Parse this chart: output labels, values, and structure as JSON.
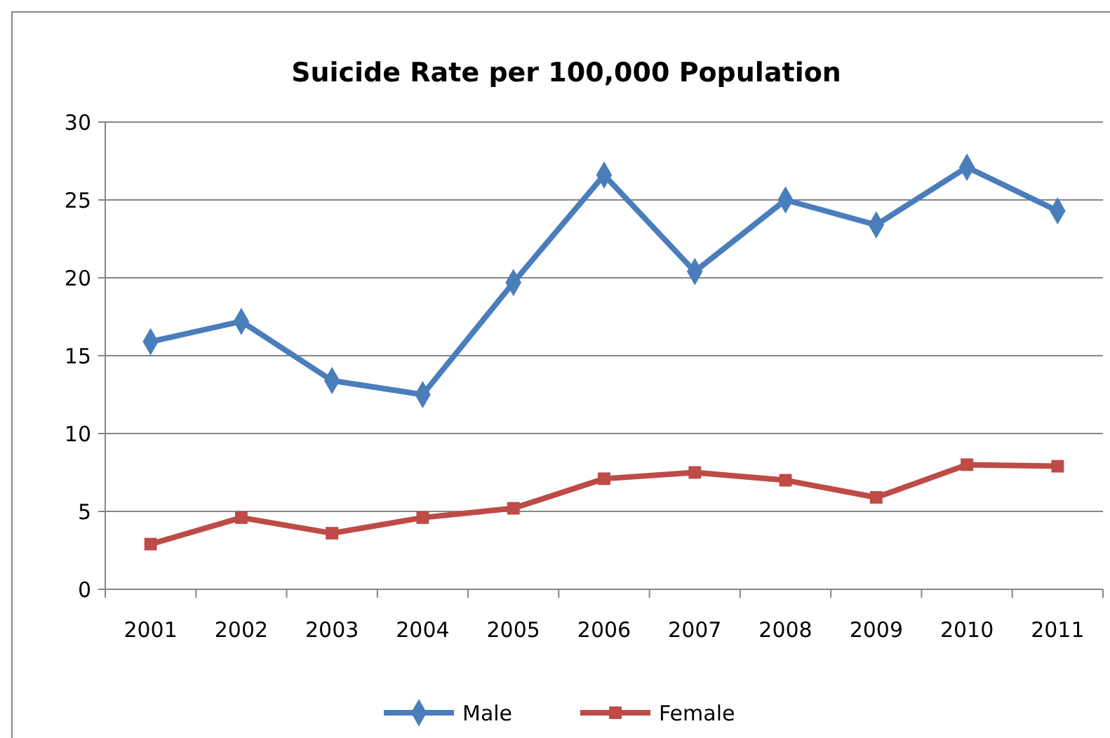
{
  "chart_data": {
    "type": "line",
    "title": "Suicide Rate per 100,000 Population",
    "categories": [
      "2001",
      "2002",
      "2003",
      "2004",
      "2005",
      "2006",
      "2007",
      "2008",
      "2009",
      "2010",
      "2011"
    ],
    "series": [
      {
        "name": "Male",
        "color": "#4a7ebb",
        "marker": "diamond",
        "values": [
          15.9,
          17.2,
          13.4,
          12.5,
          19.7,
          26.6,
          20.4,
          25.0,
          23.4,
          27.1,
          24.3
        ]
      },
      {
        "name": "Female",
        "color": "#be4b48",
        "marker": "square",
        "values": [
          2.9,
          4.6,
          3.6,
          4.6,
          5.2,
          7.1,
          7.5,
          7.0,
          5.9,
          8.0,
          7.9
        ]
      }
    ],
    "ylim": [
      0,
      30
    ],
    "yticks": [
      0,
      5,
      10,
      15,
      20,
      25,
      30
    ],
    "grid": "y",
    "legend": "bottom"
  }
}
